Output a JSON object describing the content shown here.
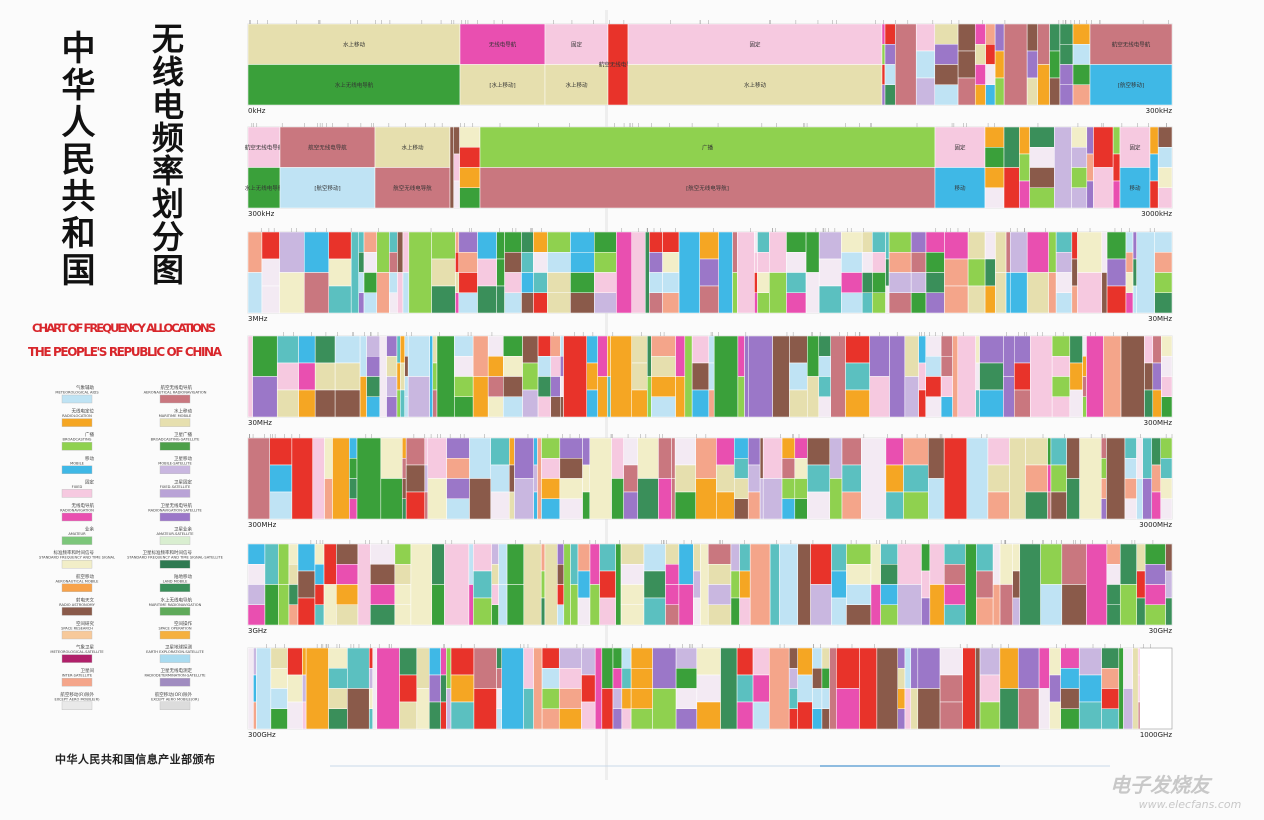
{
  "title_zh": "中华人民共和国",
  "subtitle_zh": "无线电频率划分图",
  "title_en_1": "CHART OF FREQUENCY ALLOCATIONS",
  "title_en_2": "THE PEOPLE'S REPUBLIC OF CHINA",
  "publisher": "中华人民共和国信息产业部颁布",
  "watermark": {
    "name": "电子发烧友",
    "url": "www.elecfans.com"
  },
  "legend": {
    "left": [
      {
        "zh": "气象辅助",
        "en": "METEOROLOGICAL AIDS",
        "color": "#bfe3f4"
      },
      {
        "zh": "无线电定位",
        "en": "RADIOLOCATION",
        "color": "#f5a623"
      },
      {
        "zh": "广播",
        "en": "BROADCASTING",
        "color": "#8fd14f"
      },
      {
        "zh": "移动",
        "en": "MOBILE",
        "color": "#3fb8e6"
      },
      {
        "zh": "固定",
        "en": "FIXED",
        "color": "#f6c9e0"
      },
      {
        "zh": "无线电导航",
        "en": "RADIONAVIGATION",
        "color": "#e94fb0"
      },
      {
        "zh": "业余",
        "en": "AMATEUR",
        "color": "#7cc67a"
      },
      {
        "zh": "标准频率和时间信号",
        "en": "STANDARD FREQUENCY AND TIME SIGNAL",
        "color": "#f2eec8"
      },
      {
        "zh": "航空移动",
        "en": "AERONAUTICAL MOBILE",
        "color": "#f7a24a"
      },
      {
        "zh": "射电天文",
        "en": "RADIO ASTRONOMY",
        "color": "#8a5a4a"
      },
      {
        "zh": "空间研究",
        "en": "SPACE RESEARCH",
        "color": "#f7c99a"
      },
      {
        "zh": "气象卫星",
        "en": "METEOROLOGICAL-SATELLITE",
        "color": "#b0206a"
      },
      {
        "zh": "卫星间",
        "en": "INTER-SATELLITE",
        "color": "#f4a58a"
      },
      {
        "zh": "航空移动(R)除外",
        "en": "EXCEPT AERO MOBILE(R)",
        "color": "#e9e9e9"
      }
    ],
    "right": [
      {
        "zh": "航空无线电导航",
        "en": "AERONAUTICAL RADIONAVIGATION",
        "color": "#c9777f"
      },
      {
        "zh": "水上移动",
        "en": "MARITIME MOBILE",
        "color": "#e6dfae"
      },
      {
        "zh": "卫星广播",
        "en": "BROADCASTING-SATELLITE",
        "color": "#4da04a"
      },
      {
        "zh": "卫星移动",
        "en": "MOBILE-SATELLITE",
        "color": "#c9b7e0"
      },
      {
        "zh": "卫星固定",
        "en": "FIXED-SATELLITE",
        "color": "#b9a3d6"
      },
      {
        "zh": "卫星无线电导航",
        "en": "RADIONAVIGATION-SATELLITE",
        "color": "#9b77c8"
      },
      {
        "zh": "卫星业余",
        "en": "AMATEUR-SATELLITE",
        "color": "#d9eed0"
      },
      {
        "zh": "卫星标准频率和时间信号",
        "en": "STANDARD FREQUENCY AND TIME SIGNAL-SATELLITE",
        "color": "#2f7a52"
      },
      {
        "zh": "陆地移动",
        "en": "LAND MOBILE",
        "color": "#3a8f5a"
      },
      {
        "zh": "水上无线电导航",
        "en": "MARITIME RADIONAVIGATION",
        "color": "#5faa5a"
      },
      {
        "zh": "空间操作",
        "en": "SPACE OPERATION",
        "color": "#f5b040"
      },
      {
        "zh": "卫星地球探测",
        "en": "EARTH EXPLORATION-SATELLITE",
        "color": "#a9dbf0"
      },
      {
        "zh": "卫星无线电测定",
        "en": "RADIODETERMINATION-SATELLITE",
        "color": "#a08cc0"
      },
      {
        "zh": "航空移动(OR)除外",
        "en": "EXCEPT AERO MOBILE(OR)",
        "color": "#dcdcdc"
      }
    ]
  },
  "bands": [
    {
      "start": "0kHz",
      "end": "300kHz",
      "labels": [
        "水上移动",
        "水上无线电导航",
        "无线电导航",
        "[水上移动]",
        "固定",
        "水上移动",
        "航空无线电导航",
        "固定",
        "水上移动",
        "航空无线电导航",
        "[航空移动]"
      ]
    },
    {
      "start": "300kHz",
      "end": "3000kHz",
      "labels": [
        "航空无线电导航",
        "水上无线电导航",
        "航空无线电导航",
        "[航空移动]",
        "水上移动",
        "航空无线电导航",
        "广播",
        "[航空无线电导航]",
        "固定",
        "移动",
        "固定",
        "移动"
      ]
    },
    {
      "start": "3MHz",
      "end": "30MHz",
      "labels": []
    },
    {
      "start": "30MHz",
      "end": "300MHz",
      "labels": []
    },
    {
      "start": "300MHz",
      "end": "3000MHz",
      "labels": []
    },
    {
      "start": "3GHz",
      "end": "30GHz",
      "labels": []
    },
    {
      "start": "300GHz",
      "end": "1000GHz",
      "labels": []
    }
  ]
}
